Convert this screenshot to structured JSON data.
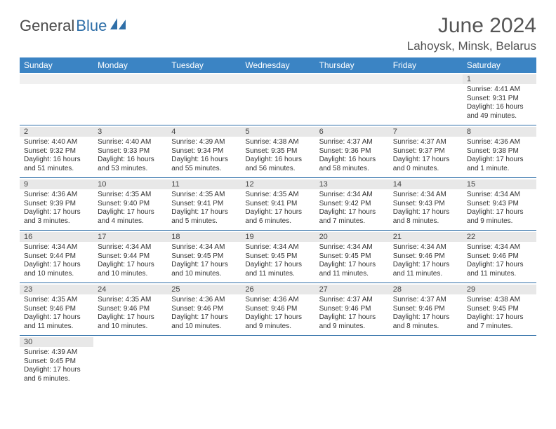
{
  "brand": {
    "part1": "General",
    "part2": "Blue"
  },
  "title": "June 2024",
  "location": "Lahoysk, Minsk, Belarus",
  "accent_color": "#3b84c4",
  "border_color": "#2f6fa8",
  "daynum_bg": "#e8e8e8",
  "columns": [
    "Sunday",
    "Monday",
    "Tuesday",
    "Wednesday",
    "Thursday",
    "Friday",
    "Saturday"
  ],
  "weeks": [
    [
      null,
      null,
      null,
      null,
      null,
      null,
      {
        "d": "1",
        "sr": "4:41 AM",
        "ss": "9:31 PM",
        "dl": "16 hours and 49 minutes."
      }
    ],
    [
      {
        "d": "2",
        "sr": "4:40 AM",
        "ss": "9:32 PM",
        "dl": "16 hours and 51 minutes."
      },
      {
        "d": "3",
        "sr": "4:40 AM",
        "ss": "9:33 PM",
        "dl": "16 hours and 53 minutes."
      },
      {
        "d": "4",
        "sr": "4:39 AM",
        "ss": "9:34 PM",
        "dl": "16 hours and 55 minutes."
      },
      {
        "d": "5",
        "sr": "4:38 AM",
        "ss": "9:35 PM",
        "dl": "16 hours and 56 minutes."
      },
      {
        "d": "6",
        "sr": "4:37 AM",
        "ss": "9:36 PM",
        "dl": "16 hours and 58 minutes."
      },
      {
        "d": "7",
        "sr": "4:37 AM",
        "ss": "9:37 PM",
        "dl": "17 hours and 0 minutes."
      },
      {
        "d": "8",
        "sr": "4:36 AM",
        "ss": "9:38 PM",
        "dl": "17 hours and 1 minute."
      }
    ],
    [
      {
        "d": "9",
        "sr": "4:36 AM",
        "ss": "9:39 PM",
        "dl": "17 hours and 3 minutes."
      },
      {
        "d": "10",
        "sr": "4:35 AM",
        "ss": "9:40 PM",
        "dl": "17 hours and 4 minutes."
      },
      {
        "d": "11",
        "sr": "4:35 AM",
        "ss": "9:41 PM",
        "dl": "17 hours and 5 minutes."
      },
      {
        "d": "12",
        "sr": "4:35 AM",
        "ss": "9:41 PM",
        "dl": "17 hours and 6 minutes."
      },
      {
        "d": "13",
        "sr": "4:34 AM",
        "ss": "9:42 PM",
        "dl": "17 hours and 7 minutes."
      },
      {
        "d": "14",
        "sr": "4:34 AM",
        "ss": "9:43 PM",
        "dl": "17 hours and 8 minutes."
      },
      {
        "d": "15",
        "sr": "4:34 AM",
        "ss": "9:43 PM",
        "dl": "17 hours and 9 minutes."
      }
    ],
    [
      {
        "d": "16",
        "sr": "4:34 AM",
        "ss": "9:44 PM",
        "dl": "17 hours and 10 minutes."
      },
      {
        "d": "17",
        "sr": "4:34 AM",
        "ss": "9:44 PM",
        "dl": "17 hours and 10 minutes."
      },
      {
        "d": "18",
        "sr": "4:34 AM",
        "ss": "9:45 PM",
        "dl": "17 hours and 10 minutes."
      },
      {
        "d": "19",
        "sr": "4:34 AM",
        "ss": "9:45 PM",
        "dl": "17 hours and 11 minutes."
      },
      {
        "d": "20",
        "sr": "4:34 AM",
        "ss": "9:45 PM",
        "dl": "17 hours and 11 minutes."
      },
      {
        "d": "21",
        "sr": "4:34 AM",
        "ss": "9:46 PM",
        "dl": "17 hours and 11 minutes."
      },
      {
        "d": "22",
        "sr": "4:34 AM",
        "ss": "9:46 PM",
        "dl": "17 hours and 11 minutes."
      }
    ],
    [
      {
        "d": "23",
        "sr": "4:35 AM",
        "ss": "9:46 PM",
        "dl": "17 hours and 11 minutes."
      },
      {
        "d": "24",
        "sr": "4:35 AM",
        "ss": "9:46 PM",
        "dl": "17 hours and 10 minutes."
      },
      {
        "d": "25",
        "sr": "4:36 AM",
        "ss": "9:46 PM",
        "dl": "17 hours and 10 minutes."
      },
      {
        "d": "26",
        "sr": "4:36 AM",
        "ss": "9:46 PM",
        "dl": "17 hours and 9 minutes."
      },
      {
        "d": "27",
        "sr": "4:37 AM",
        "ss": "9:46 PM",
        "dl": "17 hours and 9 minutes."
      },
      {
        "d": "28",
        "sr": "4:37 AM",
        "ss": "9:46 PM",
        "dl": "17 hours and 8 minutes."
      },
      {
        "d": "29",
        "sr": "4:38 AM",
        "ss": "9:45 PM",
        "dl": "17 hours and 7 minutes."
      }
    ],
    [
      {
        "d": "30",
        "sr": "4:39 AM",
        "ss": "9:45 PM",
        "dl": "17 hours and 6 minutes."
      },
      null,
      null,
      null,
      null,
      null,
      null
    ]
  ],
  "labels": {
    "sunrise": "Sunrise: ",
    "sunset": "Sunset: ",
    "daylight": "Daylight: "
  }
}
